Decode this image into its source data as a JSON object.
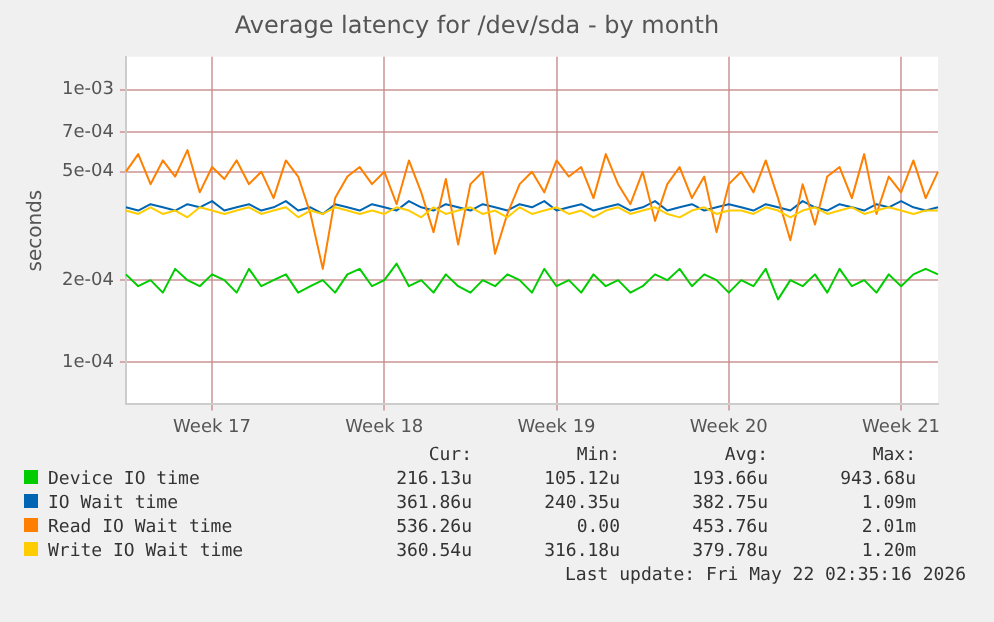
{
  "chart_data": {
    "type": "line",
    "title": "Average latency for /dev/sda - by month",
    "ylabel": "seconds",
    "log": "y",
    "grid": true,
    "legend": "bottom",
    "marker": "none",
    "line_style": "solid",
    "categories": [
      null,
      null,
      null,
      null,
      null,
      null,
      null,
      "Week 17",
      null,
      null,
      null,
      null,
      null,
      null,
      null,
      null,
      null,
      null,
      null,
      null,
      null,
      "Week 18",
      null,
      null,
      null,
      null,
      null,
      null,
      null,
      null,
      null,
      null,
      null,
      null,
      null,
      "Week 19",
      null,
      null,
      null,
      null,
      null,
      null,
      null,
      null,
      null,
      null,
      null,
      null,
      null,
      "Week 20",
      null,
      null,
      null,
      null,
      null,
      null,
      null,
      null,
      null,
      null,
      null,
      null,
      null,
      "Week 21",
      null,
      null,
      null
    ],
    "ylim": [
      7.3e-05,
      0.00132
    ],
    "yticks": [
      {
        "value": 0.0001,
        "label": "1e-04"
      },
      {
        "value": 0.0002,
        "label": "2e-04"
      },
      {
        "value": 0.0005,
        "label": "5e-04"
      },
      {
        "value": 0.0007,
        "label": "7e-04"
      },
      {
        "value": 0.001,
        "label": "1e-03"
      }
    ],
    "series": [
      {
        "name": "Device IO time",
        "color": "#00cc00",
        "values": [
          0.00021,
          0.00019,
          0.0002,
          0.00018,
          0.00022,
          0.0002,
          0.00019,
          0.00021,
          0.0002,
          0.00018,
          0.00022,
          0.00019,
          0.0002,
          0.00021,
          0.00018,
          0.00019,
          0.0002,
          0.00018,
          0.00021,
          0.00022,
          0.00019,
          0.0002,
          0.00023,
          0.00019,
          0.0002,
          0.00018,
          0.00021,
          0.00019,
          0.00018,
          0.0002,
          0.00019,
          0.00021,
          0.0002,
          0.00018,
          0.00022,
          0.00019,
          0.0002,
          0.00018,
          0.00021,
          0.00019,
          0.0002,
          0.00018,
          0.00019,
          0.00021,
          0.0002,
          0.00022,
          0.00019,
          0.00021,
          0.0002,
          0.00018,
          0.0002,
          0.00019,
          0.00022,
          0.00017,
          0.0002,
          0.00019,
          0.00021,
          0.00018,
          0.00022,
          0.00019,
          0.0002,
          0.00018,
          0.00021,
          0.00019,
          0.00021,
          0.00022,
          0.00021
        ]
      },
      {
        "name": "IO Wait time",
        "color": "#0066b3",
        "values": [
          0.00037,
          0.00036,
          0.00038,
          0.00037,
          0.00036,
          0.00038,
          0.00037,
          0.00039,
          0.00036,
          0.00037,
          0.00038,
          0.00036,
          0.00037,
          0.00039,
          0.00036,
          0.00037,
          0.00035,
          0.00038,
          0.00037,
          0.00036,
          0.00038,
          0.00037,
          0.00036,
          0.00039,
          0.00037,
          0.00036,
          0.00038,
          0.00037,
          0.00036,
          0.00038,
          0.00037,
          0.00036,
          0.00038,
          0.00037,
          0.00039,
          0.00036,
          0.00037,
          0.00038,
          0.00036,
          0.00037,
          0.00038,
          0.00036,
          0.00037,
          0.00039,
          0.00036,
          0.00037,
          0.00038,
          0.00036,
          0.00037,
          0.00038,
          0.00037,
          0.00036,
          0.00038,
          0.00037,
          0.00036,
          0.00039,
          0.00037,
          0.00036,
          0.00038,
          0.00037,
          0.00036,
          0.00038,
          0.00037,
          0.00039,
          0.00037,
          0.00036,
          0.00037
        ]
      },
      {
        "name": "Read IO Wait time",
        "color": "#ff8000",
        "values": [
          0.0005,
          0.00058,
          0.00045,
          0.00055,
          0.00048,
          0.0006,
          0.00042,
          0.00052,
          0.00047,
          0.00055,
          0.00045,
          0.0005,
          0.0004,
          0.00055,
          0.00048,
          0.00035,
          0.00022,
          0.0004,
          0.00048,
          0.00052,
          0.00045,
          0.0005,
          0.00038,
          0.00055,
          0.00042,
          0.0003,
          0.00047,
          0.00027,
          0.00045,
          0.0005,
          0.00025,
          0.00035,
          0.00045,
          0.0005,
          0.00042,
          0.00055,
          0.00048,
          0.00052,
          0.0004,
          0.00058,
          0.00045,
          0.00038,
          0.0005,
          0.00033,
          0.00045,
          0.00052,
          0.0004,
          0.00048,
          0.0003,
          0.00045,
          0.0005,
          0.00042,
          0.00055,
          0.0004,
          0.00028,
          0.00045,
          0.00032,
          0.00048,
          0.00052,
          0.0004,
          0.00058,
          0.00035,
          0.00048,
          0.00042,
          0.00055,
          0.0004,
          0.0005
        ]
      },
      {
        "name": "Write IO Wait time",
        "color": "#ffcc00",
        "values": [
          0.00036,
          0.00035,
          0.00037,
          0.00035,
          0.00036,
          0.00034,
          0.00037,
          0.00036,
          0.00035,
          0.00036,
          0.00037,
          0.00035,
          0.00036,
          0.00037,
          0.00034,
          0.00036,
          0.00035,
          0.00037,
          0.00036,
          0.00035,
          0.00036,
          0.00035,
          0.00037,
          0.00036,
          0.00034,
          0.00037,
          0.00035,
          0.00036,
          0.00037,
          0.00035,
          0.00036,
          0.00034,
          0.00037,
          0.00035,
          0.00036,
          0.00037,
          0.00035,
          0.00036,
          0.00034,
          0.00036,
          0.00037,
          0.00035,
          0.00036,
          0.00037,
          0.00035,
          0.00034,
          0.00036,
          0.00037,
          0.00035,
          0.00036,
          0.00036,
          0.00035,
          0.00037,
          0.00036,
          0.00034,
          0.00036,
          0.00037,
          0.00035,
          0.00036,
          0.00037,
          0.00035,
          0.00036,
          0.00037,
          0.00036,
          0.00035,
          0.00036,
          0.00036
        ]
      }
    ],
    "annotations": [
      "Cur:",
      "Min:",
      "Avg:",
      "Max:",
      "216.13u",
      "105.12u",
      "193.66u",
      "943.68u",
      "361.86u",
      "240.35u",
      "382.75u",
      "1.09m",
      "536.26u",
      "0.00",
      "453.76u",
      "2.01m",
      "360.54u",
      "316.18u",
      "379.78u",
      "1.20m",
      "Last update: Fri May 22 02:35:16 2026"
    ]
  }
}
